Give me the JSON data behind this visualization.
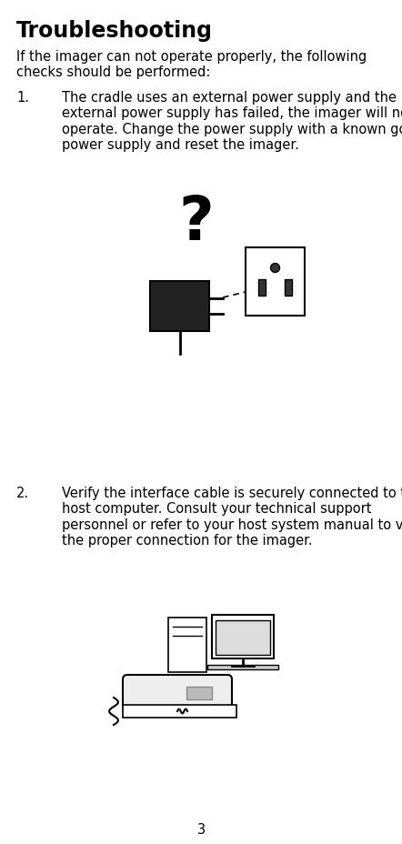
{
  "title": "Troubleshooting",
  "background_color": "#ffffff",
  "text_color": "#000000",
  "page_number": "3",
  "intro_text": "If the imager can not operate properly, the following checks should be performed:",
  "item1_num": "1.",
  "item1_text": "The cradle uses an external power supply and the\nexternal power supply has failed, the imager will not\noperate. Change the power supply with a known good\npower supply and reset the imager.",
  "item2_num": "2.",
  "item2_text": "Verify the interface cable is securely connected to the\nhost computer. Consult your technical support\npersonnel or refer to your host system manual to verify\nthe proper connection for the imager.",
  "title_fontsize": 17,
  "body_fontsize": 10.5,
  "fig_width": 4.42,
  "fig_height": 9.29,
  "dpi": 100
}
